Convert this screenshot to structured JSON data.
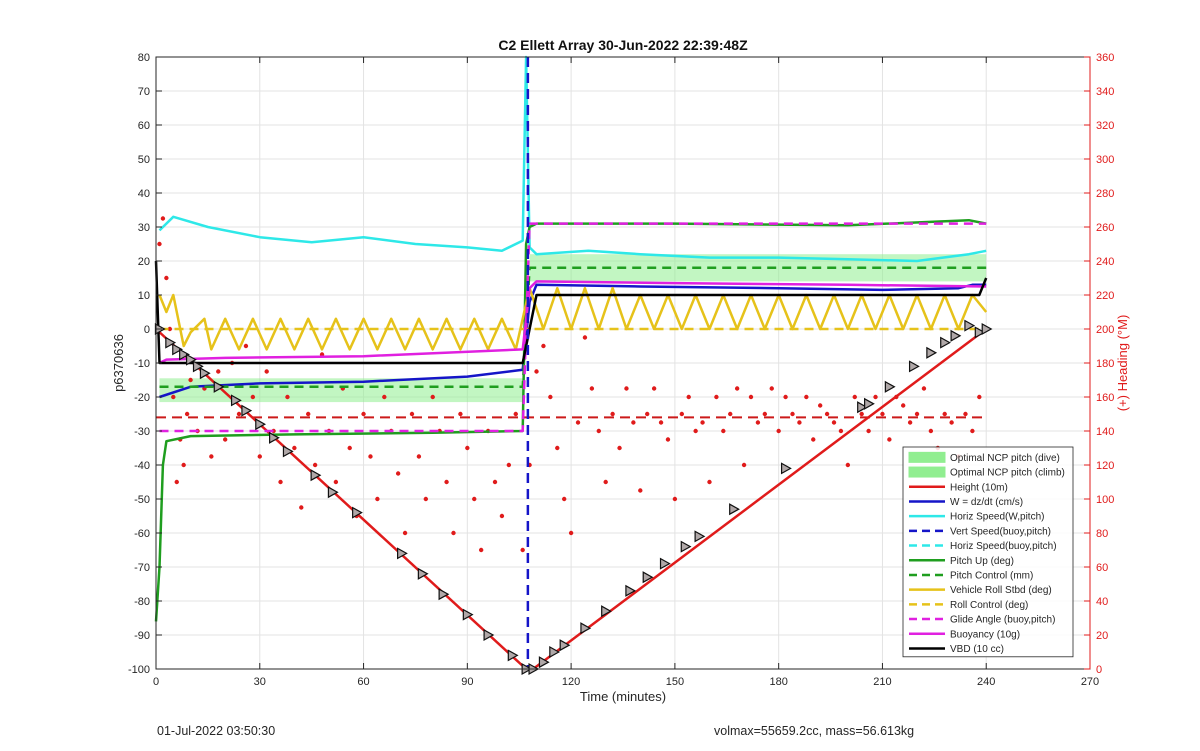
{
  "footer": {
    "left": "01-Jul-2022 03:50:30",
    "right": "volmax=55659.2cc, mass=56.613kg"
  },
  "chart_data": {
    "type": "line",
    "title": "C2 Ellett Array 30-Jun-2022 22:39:48Z",
    "xlabel": "Time (minutes)",
    "ylabel": "p6370636",
    "y2label": "(+) Heading (°M)",
    "xlim": [
      0,
      270
    ],
    "ylim": [
      -100,
      80
    ],
    "y2lim": [
      0,
      360
    ],
    "xticks": [
      0,
      30,
      60,
      90,
      120,
      150,
      180,
      210,
      240,
      270
    ],
    "yticks": [
      -100,
      -90,
      -80,
      -70,
      -60,
      -50,
      -40,
      -30,
      -20,
      -10,
      0,
      10,
      20,
      30,
      40,
      50,
      60,
      70,
      80
    ],
    "y2ticks": [
      0,
      20,
      40,
      60,
      80,
      100,
      120,
      140,
      160,
      180,
      200,
      220,
      240,
      260,
      280,
      300,
      320,
      340,
      360
    ],
    "grid": true,
    "legend_position": "bottom-right",
    "legend": [
      {
        "label": "Optimal NCP pitch (dive)",
        "style": "patch",
        "color": "#90ee90"
      },
      {
        "label": "Optimal NCP pitch (climb)",
        "style": "patch",
        "color": "#90ee90"
      },
      {
        "label": "Height (10m)",
        "style": "solid",
        "color": "#e01b1b"
      },
      {
        "label": "W = dz/dt (cm/s)",
        "style": "solid",
        "color": "#1515c8"
      },
      {
        "label": "Horiz Speed(W,pitch)",
        "style": "solid",
        "color": "#2ee8e8"
      },
      {
        "label": "Vert Speed(buoy,pitch)",
        "style": "dashed",
        "color": "#1515c8"
      },
      {
        "label": "Horiz Speed(buoy,pitch)",
        "style": "dashed",
        "color": "#2ee8e8"
      },
      {
        "label": "Pitch Up (deg)",
        "style": "solid",
        "color": "#1f9e1f"
      },
      {
        "label": "Pitch Control (mm)",
        "style": "dashed",
        "color": "#1f9e1f"
      },
      {
        "label": "Vehicle Roll Stbd (deg)",
        "style": "solid",
        "color": "#e6c21a"
      },
      {
        "label": "Roll Control (deg)",
        "style": "dashed",
        "color": "#e6c21a"
      },
      {
        "label": "Glide Angle (buoy,pitch)",
        "style": "dashed",
        "color": "#e020e0"
      },
      {
        "label": "Buoyancy (10g)",
        "style": "solid",
        "color": "#e020e0"
      },
      {
        "label": "VBD (10 cc)",
        "style": "solid",
        "color": "#000000"
      }
    ],
    "heading_reference_deg": 148,
    "series": [
      {
        "name": "Height (10m)",
        "axis": "left",
        "x": [
          0,
          107,
          109,
          240
        ],
        "y": [
          0,
          -100,
          -100,
          0
        ]
      },
      {
        "name": "W = dz/dt (cm/s)",
        "axis": "left",
        "x": [
          1,
          10,
          30,
          60,
          90,
          106,
          108,
          110,
          140,
          180,
          210,
          232,
          236,
          240
        ],
        "y": [
          -20,
          -17,
          -16,
          -15.5,
          -14,
          -12,
          8,
          13,
          12.5,
          12,
          11.5,
          12,
          13,
          13
        ]
      },
      {
        "name": "Horiz Speed(W,pitch)",
        "axis": "left",
        "x": [
          1,
          5,
          15,
          30,
          45,
          60,
          75,
          90,
          100,
          106,
          107,
          108,
          110,
          125,
          140,
          160,
          180,
          200,
          220,
          235,
          240
        ],
        "y": [
          29,
          33,
          30,
          27,
          25.5,
          27,
          25,
          24,
          23,
          26,
          80,
          24,
          22,
          23,
          22,
          21,
          21,
          20.5,
          20,
          22,
          23
        ]
      },
      {
        "name": "Pitch Up (deg)",
        "axis": "left",
        "x": [
          0,
          1,
          2,
          3,
          10,
          40,
          80,
          106,
          107,
          108,
          110,
          150,
          200,
          235,
          240
        ],
        "y": [
          -86,
          -70,
          -40,
          -33,
          -31.5,
          -31,
          -30.5,
          -30,
          25,
          30,
          31,
          31,
          30.5,
          32,
          31
        ]
      },
      {
        "name": "Pitch Control (mm)",
        "axis": "left",
        "x": [
          1,
          106,
          108,
          240
        ],
        "y": [
          -17,
          -17,
          18,
          18
        ]
      },
      {
        "name": "Vehicle Roll Stbd (deg)",
        "axis": "left",
        "x": [
          1,
          3,
          5,
          8,
          10,
          14,
          16,
          20,
          24,
          28,
          32,
          36,
          40,
          44,
          48,
          52,
          56,
          60,
          64,
          68,
          72,
          76,
          80,
          84,
          88,
          92,
          96,
          100,
          104,
          106,
          108,
          112,
          116,
          120,
          124,
          128,
          132,
          136,
          140,
          144,
          148,
          152,
          156,
          160,
          164,
          168,
          172,
          176,
          180,
          184,
          188,
          192,
          196,
          200,
          204,
          208,
          212,
          216,
          220,
          224,
          228,
          232,
          236,
          240
        ],
        "y": [
          10,
          5,
          10,
          -5,
          -1,
          3,
          -6,
          3,
          -6,
          3,
          -6,
          3,
          -6,
          3,
          -6,
          3,
          -6,
          3,
          -6,
          3,
          -6,
          3,
          -6,
          3,
          -6,
          3,
          -6,
          3,
          -6,
          3,
          12,
          0,
          12,
          0,
          12,
          0,
          12,
          0,
          10,
          0,
          10,
          0,
          10,
          0,
          10,
          0,
          10,
          0,
          10,
          0,
          10,
          0,
          10,
          0,
          10,
          0,
          10,
          0,
          10,
          0,
          10,
          0,
          10,
          5
        ]
      },
      {
        "name": "Roll Control (deg)",
        "axis": "left",
        "x": [
          1,
          240
        ],
        "y": [
          0,
          0
        ]
      },
      {
        "name": "Glide Angle (buoy,pitch)",
        "axis": "left",
        "x": [
          1,
          106,
          108,
          240
        ],
        "y": [
          -30,
          -30,
          31,
          31
        ]
      },
      {
        "name": "Buoyancy (10g)",
        "axis": "left",
        "x": [
          1,
          3,
          20,
          60,
          106,
          108,
          110,
          150,
          200,
          240
        ],
        "y": [
          -10,
          -9,
          -8.5,
          -8,
          -6,
          12,
          14,
          13.5,
          13,
          12.5
        ]
      },
      {
        "name": "VBD (10 cc)",
        "axis": "left",
        "x": [
          0,
          1,
          106,
          110,
          238,
          240
        ],
        "y": [
          20,
          -10,
          -10,
          10,
          10,
          15
        ]
      }
    ],
    "bands": [
      {
        "name": "Optimal NCP pitch (dive)",
        "x": [
          1,
          106
        ],
        "y": [
          -21.5,
          -14.5
        ]
      },
      {
        "name": "Optimal NCP pitch (climb)",
        "x": [
          108,
          240
        ],
        "y": [
          14,
          22
        ]
      }
    ],
    "heading_points": {
      "name": "Heading",
      "axis": "right",
      "x": [
        1,
        2,
        3,
        4,
        5,
        6,
        7,
        8,
        9,
        10,
        12,
        14,
        16,
        18,
        20,
        22,
        24,
        26,
        28,
        30,
        32,
        34,
        36,
        38,
        40,
        42,
        44,
        46,
        48,
        50,
        52,
        54,
        56,
        58,
        60,
        62,
        64,
        66,
        68,
        70,
        72,
        74,
        76,
        78,
        80,
        82,
        84,
        86,
        88,
        90,
        92,
        94,
        96,
        98,
        100,
        102,
        104,
        106,
        108,
        110,
        112,
        114,
        116,
        118,
        120,
        122,
        124,
        126,
        128,
        130,
        132,
        134,
        136,
        138,
        140,
        142,
        144,
        146,
        148,
        150,
        152,
        154,
        156,
        158,
        160,
        162,
        164,
        166,
        168,
        170,
        172,
        174,
        176,
        178,
        180,
        182,
        184,
        186,
        188,
        190,
        192,
        194,
        196,
        198,
        200,
        202,
        204,
        206,
        208,
        210,
        212,
        214,
        216,
        218,
        220,
        222,
        224,
        226,
        228,
        230,
        232,
        234,
        236,
        238
      ],
      "y": [
        250,
        265,
        230,
        200,
        160,
        110,
        135,
        120,
        150,
        170,
        140,
        165,
        125,
        175,
        135,
        180,
        150,
        190,
        160,
        125,
        175,
        140,
        110,
        160,
        130,
        95,
        150,
        120,
        185,
        140,
        110,
        165,
        130,
        90,
        150,
        125,
        100,
        160,
        140,
        115,
        80,
        150,
        125,
        100,
        160,
        140,
        110,
        80,
        150,
        130,
        100,
        70,
        140,
        110,
        90,
        120,
        150,
        70,
        120,
        175,
        190,
        160,
        130,
        100,
        80,
        145,
        195,
        165,
        140,
        110,
        150,
        130,
        165,
        145,
        105,
        150,
        165,
        145,
        135,
        100,
        150,
        160,
        140,
        145,
        110,
        160,
        140,
        150,
        165,
        120,
        160,
        145,
        150,
        165,
        140,
        160,
        150,
        145,
        160,
        135,
        155,
        150,
        145,
        140,
        120,
        160,
        150,
        140,
        160,
        150,
        135,
        160,
        155,
        145,
        150,
        165,
        140,
        130,
        150,
        145,
        125,
        150,
        140,
        160
      ]
    },
    "height_markers": {
      "x": [
        1,
        4,
        6,
        8,
        10,
        12,
        14,
        18,
        23,
        26,
        30,
        34,
        38,
        46,
        51,
        58,
        71,
        77,
        83,
        90,
        96,
        103,
        107,
        109,
        112,
        115,
        118,
        124,
        130,
        137,
        142,
        147,
        153,
        157,
        167,
        182,
        204,
        206,
        212,
        219,
        224,
        228,
        231,
        235,
        238,
        240
      ],
      "y": [
        0,
        -4,
        -6,
        -7.5,
        -9,
        -11,
        -13,
        -17,
        -21,
        -24,
        -28,
        -32,
        -36,
        -43,
        -48,
        -54,
        -66,
        -72,
        -78,
        -84,
        -90,
        -96,
        -100,
        -100,
        -98,
        -95,
        -93,
        -88,
        -83,
        -77,
        -73,
        -69,
        -64,
        -61,
        -53,
        -41,
        -23,
        -22,
        -17,
        -11,
        -7,
        -4,
        -2,
        1,
        -1,
        0
      ]
    }
  }
}
